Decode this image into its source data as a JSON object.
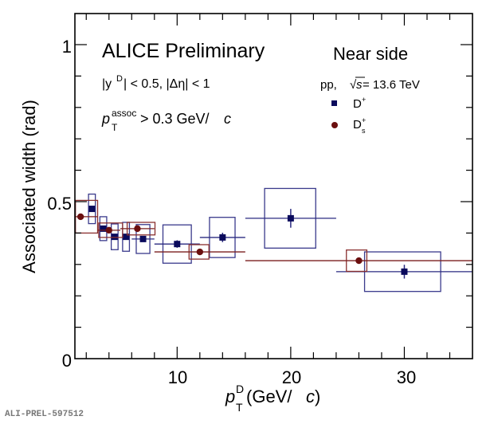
{
  "chart_data": {
    "type": "scatter",
    "title": "ALICE Preliminary",
    "subtitle": "Near side",
    "xlabel": "p_T^D (GeV/c)",
    "ylabel": "Associated width (rad)",
    "xlim": [
      1,
      36
    ],
    "ylim": [
      0,
      1.0
    ],
    "x_ticks": [
      "10",
      "20",
      "30"
    ],
    "y_ticks": [
      "0",
      "0.5",
      "1"
    ],
    "grid": false,
    "legend_position": "top-right",
    "annotations": {
      "title": "ALICE Preliminary",
      "cuts_line1_prefix": "|y",
      "cuts_line1_sup": "D",
      "cuts_line1_suffix": "| < 0.5, |Δη| < 1",
      "assoc_p": "p",
      "assoc_sub": "T",
      "assoc_sup": "assoc",
      "assoc_suffix": " > 0.3 GeV/",
      "assoc_c": "c",
      "near_side": "Near side",
      "system_prefix": "pp,",
      "system_sqrt": "√",
      "system_s": "s",
      "system_suffix": " = 13.6 TeV"
    },
    "axis_labels": {
      "y": "Associated width (rad)",
      "x_p": "p",
      "x_sub": "T",
      "x_sup": "D",
      "x_open": " (GeV/",
      "x_c": "c",
      "x_close": ")"
    },
    "series": [
      {
        "name": "D+",
        "label_main": "D",
        "label_sup": "+",
        "label_sub": "",
        "color": "#0a0a5c",
        "marker": "square",
        "points": [
          {
            "x": 2.5,
            "xlo": 2.5,
            "xhi": 2.5,
            "y": 0.477,
            "stat": 0.0,
            "sys": 0.047,
            "boxlo": 2.2,
            "boxhi": 2.8
          },
          {
            "x": 3.5,
            "xlo": 3.5,
            "xhi": 3.5,
            "y": 0.414,
            "stat": 0.0,
            "sys": 0.038,
            "boxlo": 3.2,
            "boxhi": 3.8
          },
          {
            "x": 4.5,
            "xlo": 4.5,
            "xhi": 4.5,
            "y": 0.388,
            "stat": 0.0,
            "sys": 0.041,
            "boxlo": 4.2,
            "boxhi": 4.8
          },
          {
            "x": 5.5,
            "xlo": 5.5,
            "xhi": 5.5,
            "y": 0.388,
            "stat": 0.0,
            "sys": 0.046,
            "boxlo": 5.2,
            "boxhi": 5.8
          },
          {
            "x": 7.0,
            "xlo": 6.0,
            "xhi": 8.0,
            "y": 0.381,
            "stat": 0.0,
            "sys": 0.046,
            "boxlo": 6.4,
            "boxhi": 7.6
          },
          {
            "x": 10.0,
            "xlo": 8.0,
            "xhi": 12.0,
            "y": 0.365,
            "stat": 0.012,
            "sys": 0.061,
            "boxlo": 8.75,
            "boxhi": 11.25
          },
          {
            "x": 14.0,
            "xlo": 12.0,
            "xhi": 16.0,
            "y": 0.386,
            "stat": 0.015,
            "sys": 0.064,
            "boxlo": 12.85,
            "boxhi": 15.1
          },
          {
            "x": 20.0,
            "xlo": 16.0,
            "xhi": 24.0,
            "y": 0.447,
            "stat": 0.03,
            "sys": 0.095,
            "boxlo": 17.7,
            "boxhi": 22.2
          },
          {
            "x": 30.0,
            "xlo": 24.0,
            "xhi": 36.0,
            "y": 0.277,
            "stat": 0.022,
            "sys": 0.063,
            "boxlo": 26.5,
            "boxhi": 33.2
          }
        ]
      },
      {
        "name": "Ds+",
        "label_main": "D",
        "label_sup": "+",
        "label_sub": "s",
        "color": "#6b0f0f",
        "marker": "circle",
        "points": [
          {
            "x": 1.5,
            "xlo": 1.0,
            "xhi": 3.0,
            "y": 0.452,
            "stat": 0.0,
            "sys": 0.052,
            "boxlo": 1.05,
            "boxhi": 3.0
          },
          {
            "x": 4.0,
            "xlo": 3.0,
            "xhi": 5.0,
            "y": 0.409,
            "stat": 0.0,
            "sys": 0.023,
            "boxlo": 3.1,
            "boxhi": 5.2
          },
          {
            "x": 6.5,
            "xlo": 5.0,
            "xhi": 8.0,
            "y": 0.414,
            "stat": 0.0,
            "sys": 0.02,
            "boxlo": 5.6,
            "boxhi": 8.05
          },
          {
            "x": 12.0,
            "xlo": 8.0,
            "xhi": 16.0,
            "y": 0.34,
            "stat": 0.0,
            "sys": 0.023,
            "boxlo": 11.05,
            "boxhi": 12.8
          },
          {
            "x": 26.0,
            "xlo": 16.0,
            "xhi": 36.0,
            "y": 0.312,
            "stat": 0.01,
            "sys": 0.034,
            "boxlo": 24.9,
            "boxhi": 26.7
          }
        ]
      }
    ]
  },
  "watermark": "ALI-PREL-597512"
}
